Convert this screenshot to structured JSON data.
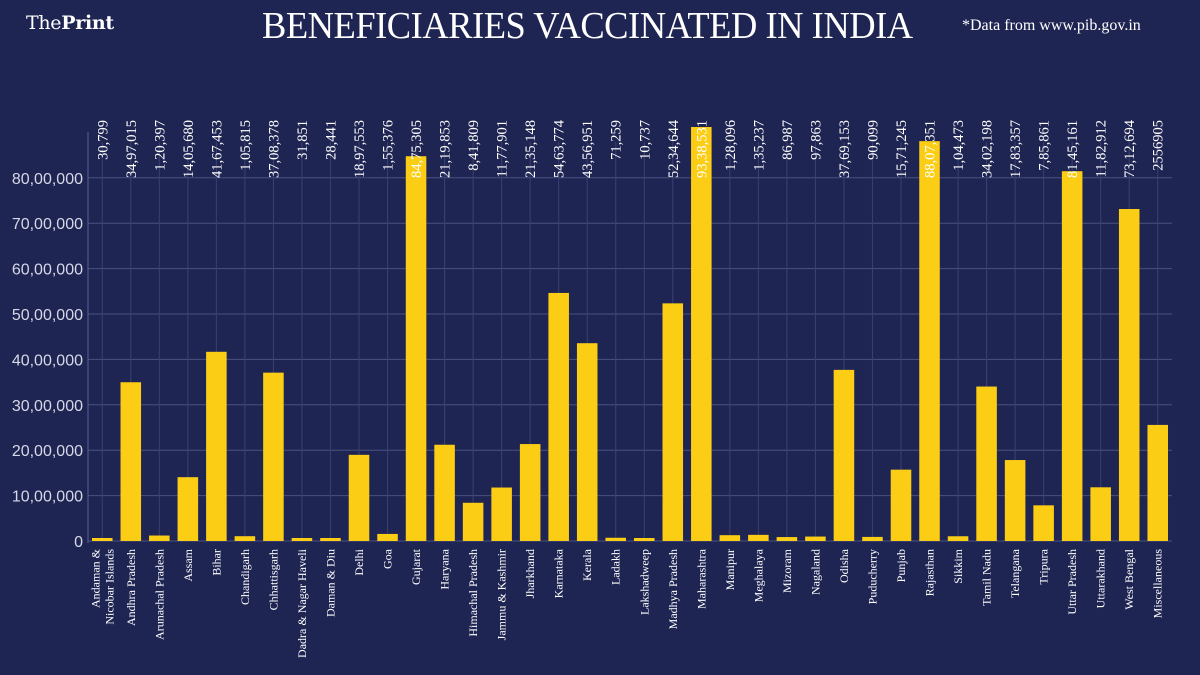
{
  "header": {
    "brand_light": "The",
    "brand_bold": "Print",
    "source_note": "*Data from www.pib.gov.in"
  },
  "chart_data": {
    "type": "bar",
    "title": "BENEFICIARIES VACCINATED IN INDIA",
    "xlabel": "",
    "ylabel": "",
    "ylim": [
      0,
      90000000
    ],
    "yticks": [
      0,
      1000000,
      2000000,
      3000000,
      4000000,
      5000000,
      6000000,
      7000000,
      8000000
    ],
    "ytick_labels": [
      "0",
      "10,00,000",
      "20,00,000",
      "30,00,000",
      "40,00,000",
      "50,00,000",
      "60,00,000",
      "70,00,000",
      "80,00,000"
    ],
    "grid": true,
    "bar_color": "#fbcd14",
    "background_color": "#1f2553",
    "categories": [
      [
        "Andaman &",
        "Nicobar Islands"
      ],
      [
        "Andhra Pradesh"
      ],
      [
        "Arunachal Pradesh"
      ],
      [
        "Assam"
      ],
      [
        "Bihar"
      ],
      [
        "Chandigarh"
      ],
      [
        "Chhattisgarh"
      ],
      [
        "Dadra & Nagar Haveli"
      ],
      [
        "Daman & Diu"
      ],
      [
        "Delhi"
      ],
      [
        "Goa"
      ],
      [
        "Gujarat"
      ],
      [
        "Haryana"
      ],
      [
        "Himachal Pradesh"
      ],
      [
        "Jammu & Kashmir"
      ],
      [
        "Jharkhand"
      ],
      [
        "Karnataka"
      ],
      [
        "Kerala"
      ],
      [
        "Ladakh"
      ],
      [
        "Lakshadweep"
      ],
      [
        "Madhya Pradesh"
      ],
      [
        "Maharashtra"
      ],
      [
        "Manipur"
      ],
      [
        "Meghalaya"
      ],
      [
        "Mizoram"
      ],
      [
        "Nagaland"
      ],
      [
        "Odisha"
      ],
      [
        "Puducherry"
      ],
      [
        "Punjab"
      ],
      [
        "Rajasthan"
      ],
      [
        "Sikkim"
      ],
      [
        "Tamil Nadu"
      ],
      [
        "Telangana"
      ],
      [
        "Tripura"
      ],
      [
        "Uttar Pradesh"
      ],
      [
        "Uttarakhand"
      ],
      [
        "West Bengal"
      ],
      [
        "Miscellaneous"
      ]
    ],
    "value_labels": [
      "30,799",
      "34,97,015",
      "1,20,397",
      "14,05,680",
      "41,67,453",
      "1,05,815",
      "37,08,378",
      "31,851",
      "28,441",
      "18,97,553",
      "1,55,376",
      "84,75,305",
      "21,19,853",
      "8,41,809",
      "11,77,901",
      "21,35,148",
      "54,63,774",
      "43,56,951",
      "71,259",
      "10,737",
      "52,34,644",
      "93,38,531",
      "1,28,096",
      "1,35,237",
      "86,987",
      "97,863",
      "37,69,153",
      "90,099",
      "15,71,245",
      "88,07,351",
      "1,04,473",
      "34,02,198",
      "17,83,357",
      "7,85,861",
      "81,45,161",
      "11,82,912",
      "73,12,694",
      "2556905"
    ],
    "values": [
      30799,
      3497015,
      120397,
      1405680,
      4167453,
      105815,
      3708378,
      31851,
      28441,
      1897553,
      155376,
      8475305,
      2119853,
      841809,
      1177901,
      2135148,
      5463774,
      4356951,
      71259,
      10737,
      5234644,
      9338531,
      128096,
      135237,
      86987,
      97863,
      3769153,
      90099,
      1571245,
      8807351,
      104473,
      3402198,
      1783357,
      785861,
      8145161,
      1182912,
      7312694,
      2556905
    ],
    "legend": null
  }
}
